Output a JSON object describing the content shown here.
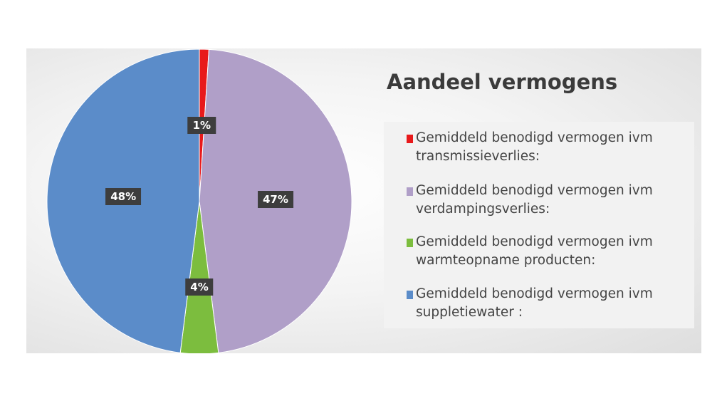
{
  "chart_data": {
    "type": "pie",
    "title": "Aandeel vermogens",
    "categories": [
      "Gemiddeld benodigd vermogen ivm transmissieverlies:",
      "Gemiddeld benodigd vermogen ivm verdampingsverlies:",
      "Gemiddeld benodigd vermogen ivm warmteopname producten:",
      "Gemiddeld benodigd vermogen ivm suppletiewater :"
    ],
    "values": [
      1,
      47,
      4,
      48
    ],
    "labels": [
      "1%",
      "47%",
      "4%",
      "48%"
    ],
    "colors": [
      "#e8191b",
      "#b09fc8",
      "#7cbd3e",
      "#5b8cc9"
    ],
    "legend_position": "right"
  },
  "legend": {
    "items": [
      {
        "line1": "Gemiddeld benodigd vermogen ivm",
        "line2": "transmissieverlies:"
      },
      {
        "line1": "Gemiddeld benodigd vermogen ivm",
        "line2": "verdampingsverlies:"
      },
      {
        "line1": "Gemiddeld benodigd vermogen ivm",
        "line2": "warmteopname producten:"
      },
      {
        "line1": "Gemiddeld benodigd vermogen ivm",
        "line2": "suppletiewater :"
      }
    ]
  }
}
